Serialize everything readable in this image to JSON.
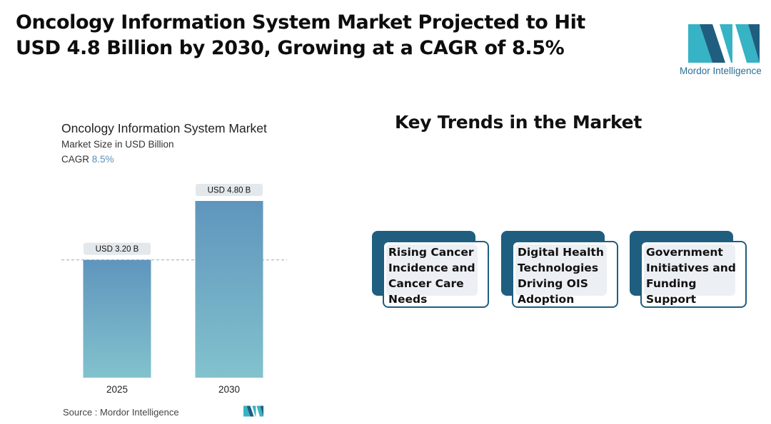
{
  "headline": {
    "line1": "Oncology Information System Market Projected to Hit",
    "line2": "USD 4.8 Billion by 2030, Growing at a CAGR of 8.5%"
  },
  "brand": {
    "name": "Mordor Intelligence",
    "color_dark": "#1f5e7e",
    "color_teal": "#36b3c4"
  },
  "chart": {
    "title": "Oncology Information System Market",
    "subtitle": "Market Size in USD Billion",
    "cagr_label": "CAGR",
    "cagr_value": "8.5%",
    "source": "Source :  Mordor Intelligence"
  },
  "chart_data": {
    "type": "bar",
    "title": "Oncology Information System Market",
    "ylabel": "Market Size in USD Billion",
    "categories": [
      "2025",
      "2030"
    ],
    "values": [
      3.2,
      4.8
    ],
    "data_labels": [
      "USD 3.20 B",
      "USD 4.80 B"
    ],
    "ylim": [
      0,
      4.8
    ],
    "reference_line": 3.2,
    "grid": false,
    "colors": {
      "top": "#5f95bd",
      "bottom": "#82c2cd"
    }
  },
  "trends": {
    "title": "Key Trends in the Market",
    "items": [
      {
        "label": "Rising Cancer Incidence and Cancer Care Needs"
      },
      {
        "label": "Digital Health Technologies Driving OIS Adoption"
      },
      {
        "label": "Government Initiatives and Funding Support"
      }
    ]
  }
}
